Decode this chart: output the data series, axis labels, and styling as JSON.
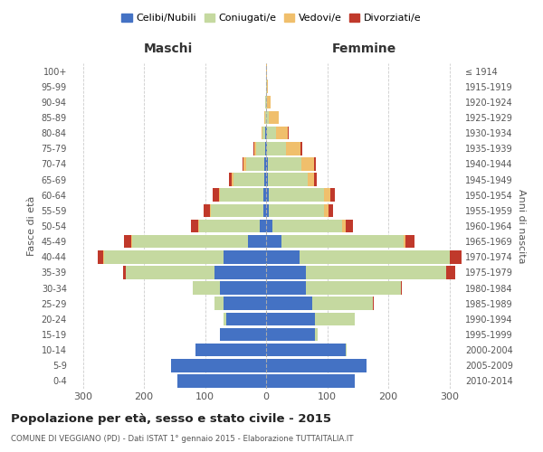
{
  "age_groups": [
    "0-4",
    "5-9",
    "10-14",
    "15-19",
    "20-24",
    "25-29",
    "30-34",
    "35-39",
    "40-44",
    "45-49",
    "50-54",
    "55-59",
    "60-64",
    "65-69",
    "70-74",
    "75-79",
    "80-84",
    "85-89",
    "90-94",
    "95-99",
    "100+"
  ],
  "birth_years": [
    "2010-2014",
    "2005-2009",
    "2000-2004",
    "1995-1999",
    "1990-1994",
    "1985-1989",
    "1980-1984",
    "1975-1979",
    "1970-1974",
    "1965-1969",
    "1960-1964",
    "1955-1959",
    "1950-1954",
    "1945-1949",
    "1940-1944",
    "1935-1939",
    "1930-1934",
    "1925-1929",
    "1920-1924",
    "1915-1919",
    "≤ 1914"
  ],
  "colors": {
    "celibi": "#4472c4",
    "coniugati": "#c5d9a0",
    "vedovi": "#f0bf6c",
    "divorziati": "#c0392b"
  },
  "maschi": {
    "celibi": [
      145,
      155,
      115,
      75,
      65,
      70,
      75,
      85,
      70,
      30,
      10,
      5,
      5,
      3,
      3,
      2,
      1,
      0,
      0,
      0,
      0
    ],
    "coniugati": [
      0,
      0,
      1,
      1,
      5,
      15,
      45,
      145,
      195,
      190,
      100,
      85,
      70,
      50,
      30,
      15,
      5,
      2,
      1,
      0,
      0
    ],
    "vedovi": [
      0,
      0,
      0,
      0,
      0,
      0,
      0,
      0,
      1,
      1,
      1,
      2,
      2,
      3,
      4,
      3,
      2,
      1,
      0,
      0,
      0
    ],
    "divorziati": [
      0,
      0,
      0,
      0,
      0,
      0,
      0,
      4,
      10,
      12,
      12,
      10,
      10,
      5,
      1,
      1,
      0,
      0,
      0,
      0,
      0
    ]
  },
  "femmine": {
    "celibi": [
      145,
      165,
      130,
      80,
      80,
      75,
      65,
      65,
      55,
      25,
      10,
      5,
      5,
      3,
      3,
      2,
      1,
      0,
      0,
      0,
      0
    ],
    "coniugati": [
      0,
      0,
      2,
      5,
      65,
      100,
      155,
      230,
      245,
      200,
      115,
      90,
      90,
      65,
      55,
      30,
      15,
      5,
      2,
      1,
      0
    ],
    "vedovi": [
      0,
      0,
      0,
      0,
      0,
      0,
      0,
      0,
      1,
      3,
      5,
      7,
      10,
      10,
      20,
      25,
      20,
      15,
      5,
      2,
      1
    ],
    "divorziati": [
      0,
      0,
      0,
      0,
      0,
      1,
      2,
      15,
      20,
      15,
      12,
      8,
      7,
      5,
      4,
      2,
      1,
      0,
      0,
      0,
      0
    ]
  },
  "xlim": 320,
  "title": "Popolazione per età, sesso e stato civile - 2015",
  "subtitle": "COMUNE DI VEGGIANO (PD) - Dati ISTAT 1° gennaio 2015 - Elaborazione TUTTAITALIA.IT",
  "xlabel_left": "Maschi",
  "xlabel_right": "Femmine",
  "ylabel_left": "Fasce di età",
  "ylabel_right": "Anni di nascita",
  "legend_labels": [
    "Celibi/Nubili",
    "Coniugati/e",
    "Vedovi/e",
    "Divorziati/e"
  ],
  "bg_color": "#ffffff",
  "grid_color": "#cccccc"
}
